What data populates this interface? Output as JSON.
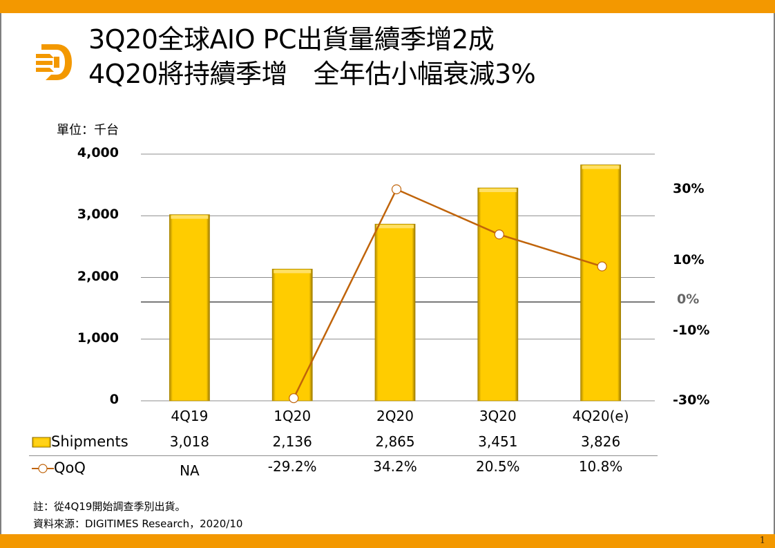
{
  "title": {
    "line1": "3Q20全球AIO PC出貨量續季增2成",
    "line2": "4Q20將持續季增　全年估小幅衰減3%"
  },
  "logo": "digitimes-d-logo-icon",
  "page_number": "1",
  "colors": {
    "brand_orange": "#f39800",
    "bar_gold": "#ffcc00",
    "line_brown": "#c0640a"
  },
  "chart_data": {
    "type": "bar",
    "title": "3Q20全球AIO PC出貨量續季增2成 4Q20將持續季增 全年估小幅衰減3%",
    "unit_label": "單位：千台",
    "categories": [
      "4Q19",
      "1Q20",
      "2Q20",
      "3Q20",
      "4Q20(e)"
    ],
    "series": [
      {
        "name": "Shipments",
        "type": "bar",
        "axis": "left",
        "values": [
          3018,
          2136,
          2865,
          3451,
          3826
        ],
        "labels": [
          "3,018",
          "2,136",
          "2,865",
          "3,451",
          "3,826"
        ]
      },
      {
        "name": "QoQ",
        "type": "line",
        "axis": "right",
        "values": [
          null,
          -29.2,
          34.2,
          20.5,
          10.8
        ],
        "labels": [
          "NA",
          "-29.2%",
          "34.2%",
          "20.5%",
          "10.8%"
        ]
      }
    ],
    "y_left": {
      "ylim": [
        0,
        4000
      ],
      "ticks": [
        "0",
        "1,000",
        "2,000",
        "3,000",
        "4,000"
      ],
      "tick_values": [
        0,
        1000,
        2000,
        3000,
        4000
      ]
    },
    "y_right": {
      "ylim": [
        -30,
        36.8
      ],
      "ticks": [
        "30%",
        "10%",
        "0%",
        "-10%",
        "-30%"
      ],
      "tick_values": [
        30,
        10,
        0,
        -10,
        -30
      ]
    },
    "grid": true,
    "legend": "bottom-table"
  },
  "table": {
    "row_labels": [
      "Shipments",
      "QoQ"
    ]
  },
  "notes": {
    "note": "註：從4Q19開始調查季別出貨。",
    "source": "資料來源：DIGITIMES Research，2020/10"
  }
}
